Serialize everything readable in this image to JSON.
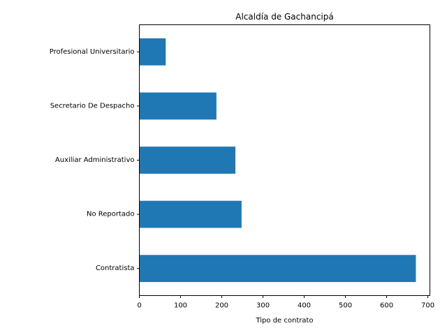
{
  "chart_data": {
    "type": "bar",
    "orientation": "horizontal",
    "title": "Alcaldía de Gachancipá",
    "xlabel": "Tipo de contrato",
    "ylabel": "",
    "categories": [
      "Contratista",
      "No Reportado",
      "Auxiliar Administrativo",
      "Secretario De Despacho",
      "Profesional Universitario"
    ],
    "values": [
      671,
      248,
      233,
      187,
      64
    ],
    "xlim": [
      0,
      705
    ],
    "xticks": [
      0,
      100,
      200,
      300,
      400,
      500,
      600,
      700
    ],
    "grid": false,
    "legend": "none",
    "bar_color": "#1f77b4"
  }
}
